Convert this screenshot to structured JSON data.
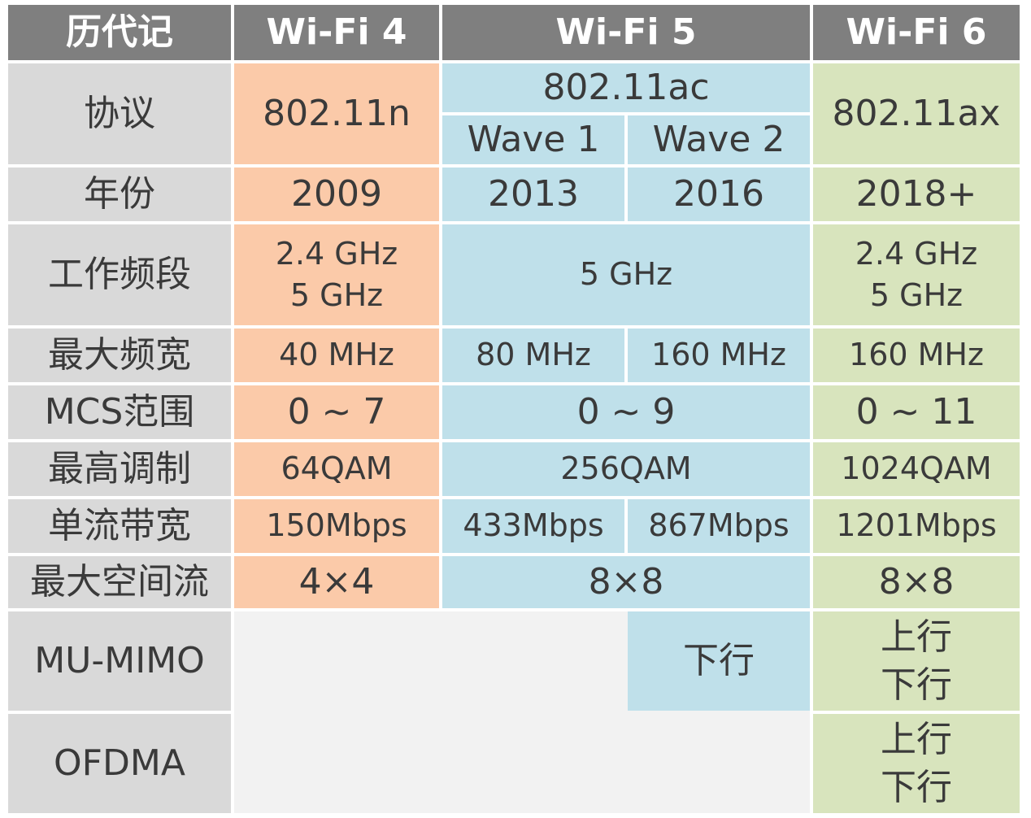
{
  "header": {
    "generation": "历代记",
    "wifi4": "Wi-Fi 4",
    "wifi5": "Wi-Fi 5",
    "wifi6": "Wi-Fi 6"
  },
  "rows": {
    "protocol": {
      "label": "协议",
      "wifi4": "802.11n",
      "wifi5": "802.11ac",
      "wave1": "Wave 1",
      "wave2": "Wave 2",
      "wifi6": "802.11ax"
    },
    "year": {
      "label": "年份",
      "wifi4": "2009",
      "wave1": "2013",
      "wave2": "2016",
      "wifi6": "2018+"
    },
    "band": {
      "label": "工作频段",
      "wifi4_l1": "2.4 GHz",
      "wifi4_l2": "5 GHz",
      "wifi5": "5 GHz",
      "wifi6_l1": "2.4 GHz",
      "wifi6_l2": "5 GHz"
    },
    "bandwidth": {
      "label": "最大频宽",
      "wifi4": "40 MHz",
      "wave1": "80 MHz",
      "wave2": "160 MHz",
      "wifi6": "160 MHz"
    },
    "mcs": {
      "label": "MCS范围",
      "wifi4": "0 ~ 7",
      "wifi5": "0 ~ 9",
      "wifi6": "0 ~ 11"
    },
    "modulation": {
      "label": "最高调制",
      "wifi4": "64QAM",
      "wifi5": "256QAM",
      "wifi6": "1024QAM"
    },
    "stream_rate": {
      "label": "单流带宽",
      "wifi4": "150Mbps",
      "wave1": "433Mbps",
      "wave2": "867Mbps",
      "wifi6": "1201Mbps"
    },
    "spatial_streams": {
      "label": "最大空间流",
      "wifi4": "4×4",
      "wifi5": "8×8",
      "wifi6": "8×8"
    },
    "mu_mimo": {
      "label": "MU-MIMO",
      "wave2": "下行",
      "wifi6_l1": "上行",
      "wifi6_l2": "下行"
    },
    "ofdma": {
      "label": "OFDMA",
      "wifi6_l1": "上行",
      "wifi6_l2": "下行"
    }
  }
}
